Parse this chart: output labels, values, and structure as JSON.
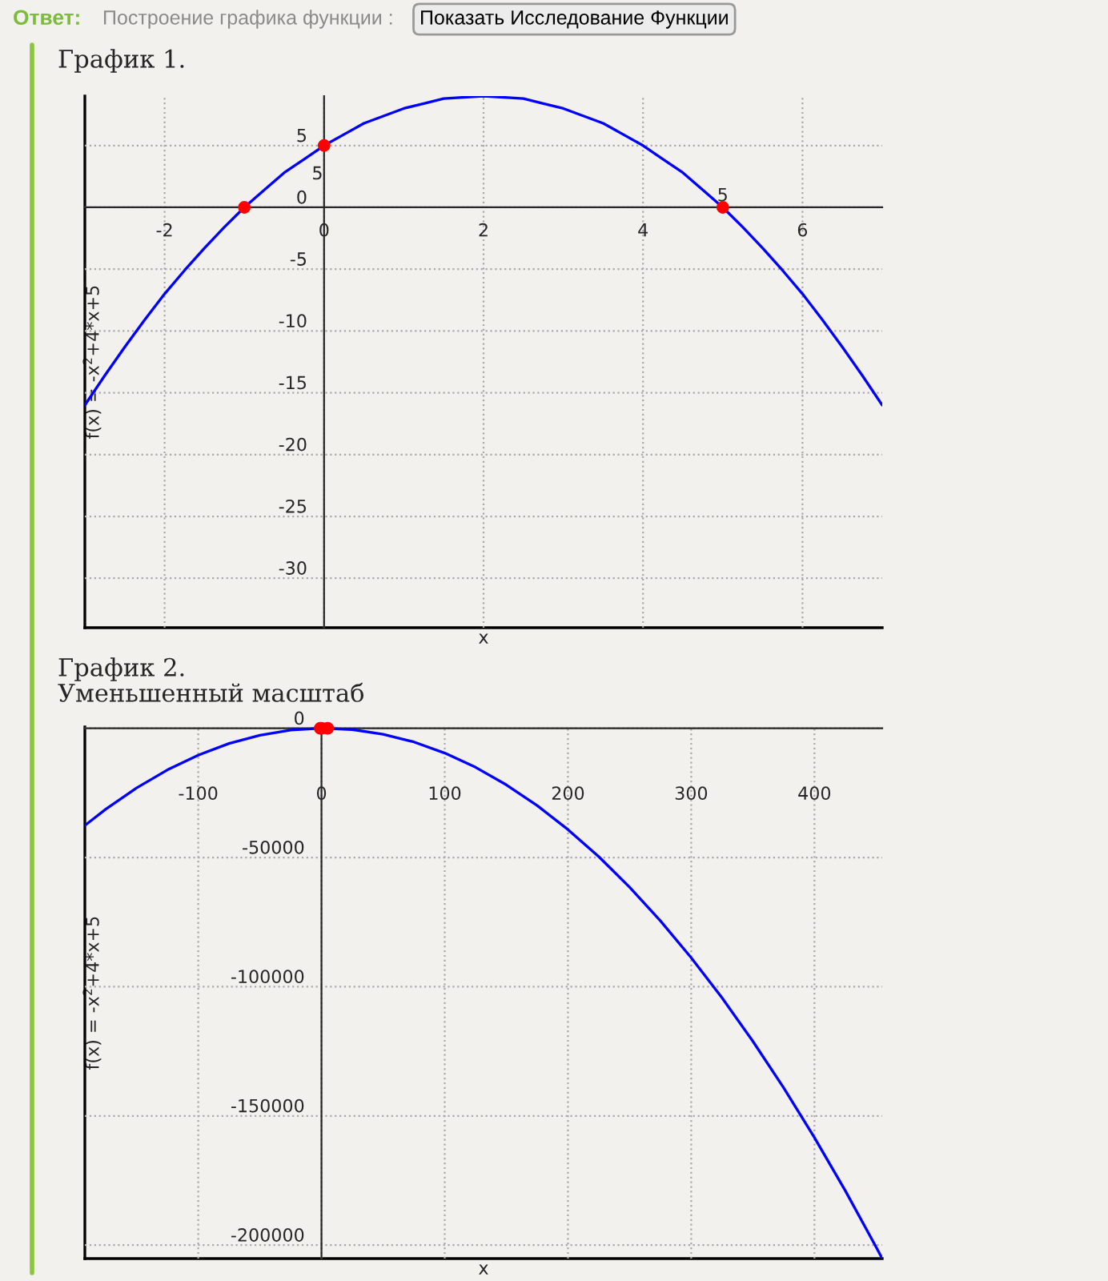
{
  "chart_data": [
    {
      "type": "line",
      "title": "График 1.",
      "xlabel": "x",
      "ylabel": "f(x) = -x$^{2}$+4*x+5",
      "xlim": [
        -3,
        7
      ],
      "ylim": [
        -34,
        9
      ],
      "xticks": [
        -2,
        0,
        2,
        4,
        6
      ],
      "yticks": [
        -30,
        -25,
        -20,
        -15,
        -10,
        -5,
        0,
        5
      ],
      "grid": true,
      "annotations": [
        "Ответ:",
        "Построение графика функции :",
        "Показать Исследование Функции",
        {
          "text": "5",
          "x": 0,
          "y": 5
        },
        {
          "text": "5",
          "x": 5,
          "y": 0
        }
      ],
      "series": [
        {
          "color": "#0000ff",
          "marker": "none",
          "x": [
            -3,
            -2.75,
            -2.5,
            -2.25,
            -2,
            -1.75,
            -1.5,
            -1.25,
            -1,
            -0.75,
            -0.5,
            -0.25,
            0,
            0.25,
            0.5,
            0.75,
            1,
            1.25,
            1.5,
            1.75,
            2,
            2.25,
            2.5,
            2.75,
            3,
            3.25,
            3.5,
            3.75,
            4,
            4.25,
            4.5,
            4.75,
            5,
            5.25,
            5.5,
            5.75,
            6,
            6.25,
            6.5,
            6.75,
            7
          ],
          "values": [
            -16,
            -13.6,
            -11.3,
            -9.1,
            -7,
            -5.1,
            -3.3,
            -1.6,
            0,
            1.4,
            2.8,
            3.9,
            5,
            5.9,
            6.8,
            7.4,
            8,
            8.4,
            8.8,
            8.9,
            9,
            8.9,
            8.8,
            8.4,
            8,
            7.4,
            6.8,
            5.9,
            5,
            3.9,
            2.8,
            1.4,
            0,
            -1.6,
            -3.3,
            -5.1,
            -7,
            -9.1,
            -11.3,
            -13.6,
            -16
          ]
        },
        {
          "type": "scatter",
          "color": "#ff0000",
          "marker": "circle",
          "x": [
            -1,
            0,
            5
          ],
          "values": [
            0,
            5,
            0
          ]
        }
      ]
    },
    {
      "type": "line",
      "title": "График 2.",
      "subtitle": "Уменьшенный масштаб",
      "xlabel": "x",
      "ylabel": "f(x) = -x$^{2}$+4*x+5",
      "xlim": [
        -192,
        455
      ],
      "ylim": [
        -205200,
        500
      ],
      "xticks": [
        -100,
        0,
        100,
        200,
        300,
        400
      ],
      "yticks": [
        -200000,
        -150000,
        -100000,
        -50000,
        0
      ],
      "grid": true,
      "series": [
        {
          "color": "#0000ff",
          "marker": "none",
          "x": [
            -192,
            -175,
            -150,
            -125,
            -100,
            -75,
            -50,
            -25,
            0,
            25,
            50,
            75,
            100,
            125,
            150,
            175,
            200,
            225,
            250,
            275,
            300,
            325,
            350,
            375,
            400,
            425,
            450,
            455
          ],
          "values": [
            -37600,
            -31300,
            -23100,
            -16100,
            -10400,
            -5900,
            -2700,
            -700,
            0,
            -500,
            -2300,
            -5300,
            -9600,
            -15100,
            -21900,
            -29900,
            -39200,
            -49700,
            -61500,
            -74500,
            -88800,
            -104300,
            -121100,
            -139100,
            -158400,
            -178900,
            -200700,
            -205200
          ]
        },
        {
          "type": "scatter",
          "color": "#ff0000",
          "marker": "circle",
          "x": [
            -1,
            0,
            5
          ],
          "values": [
            0,
            0,
            0
          ]
        }
      ]
    }
  ]
}
